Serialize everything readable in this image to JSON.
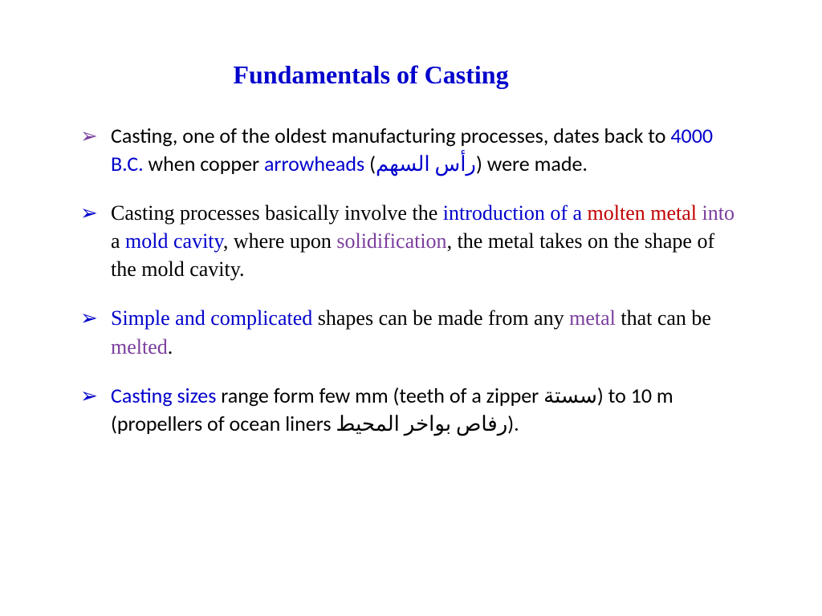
{
  "title": "Fundamentals of Casting",
  "colors": {
    "blue": "#0000cc",
    "purple": "#7b3f9e",
    "red": "#c00000",
    "black": "#000000",
    "background": "#ffffff"
  },
  "typography": {
    "title_fontsize": 32,
    "body_fontsize": 26,
    "serif_family": "Times New Roman",
    "sans_family": "Calibri"
  },
  "bullets": [
    {
      "marker_color": "purple",
      "font": "sans",
      "runs": [
        {
          "text": "Casting, one of the oldest manufacturing processes, dates back to ",
          "color": "black"
        },
        {
          "text": "4000 B.C.",
          "color": "blue"
        },
        {
          "text": " when copper ",
          "color": "black"
        },
        {
          "text": "arrowheads",
          "color": "blue"
        },
        {
          "text": " (",
          "color": "black"
        },
        {
          "text": "رأس السهم",
          "color": "blue"
        },
        {
          "text": ") were made.",
          "color": "black"
        }
      ]
    },
    {
      "marker_color": "blue",
      "font": "serif",
      "runs": [
        {
          "text": "Casting processes basically involve the ",
          "color": "black"
        },
        {
          "text": "introduction of a ",
          "color": "blue"
        },
        {
          "text": "molten metal ",
          "color": "red"
        },
        {
          "text": "into ",
          "color": "purple"
        },
        {
          "text": "a ",
          "color": "black"
        },
        {
          "text": "mold cavity",
          "color": "blue"
        },
        {
          "text": ", where upon ",
          "color": "black"
        },
        {
          "text": "solidification",
          "color": "purple"
        },
        {
          "text": ", the metal takes on the shape of the mold cavity.",
          "color": "black"
        }
      ]
    },
    {
      "marker_color": "blue",
      "font": "serif",
      "runs": [
        {
          "text": "Simple and complicated ",
          "color": "blue"
        },
        {
          "text": "shapes can be made from any ",
          "color": "black"
        },
        {
          "text": "metal ",
          "color": "purple"
        },
        {
          "text": "that can be ",
          "color": "black"
        },
        {
          "text": "melted",
          "color": "purple"
        },
        {
          "text": ".",
          "color": "black"
        }
      ]
    },
    {
      "marker_color": "blue",
      "font": "sans",
      "runs": [
        {
          "text": "Casting sizes ",
          "color": "blue"
        },
        {
          "text": "range form few mm (teeth of a zipper ",
          "color": "black"
        },
        {
          "text": "سستة",
          "color": "black"
        },
        {
          "text": ") to 10 m (propellers of ocean liners ",
          "color": "black"
        },
        {
          "text": "رفاص بواخر المحيط",
          "color": "black"
        },
        {
          "text": ").",
          "color": "black"
        }
      ]
    }
  ]
}
